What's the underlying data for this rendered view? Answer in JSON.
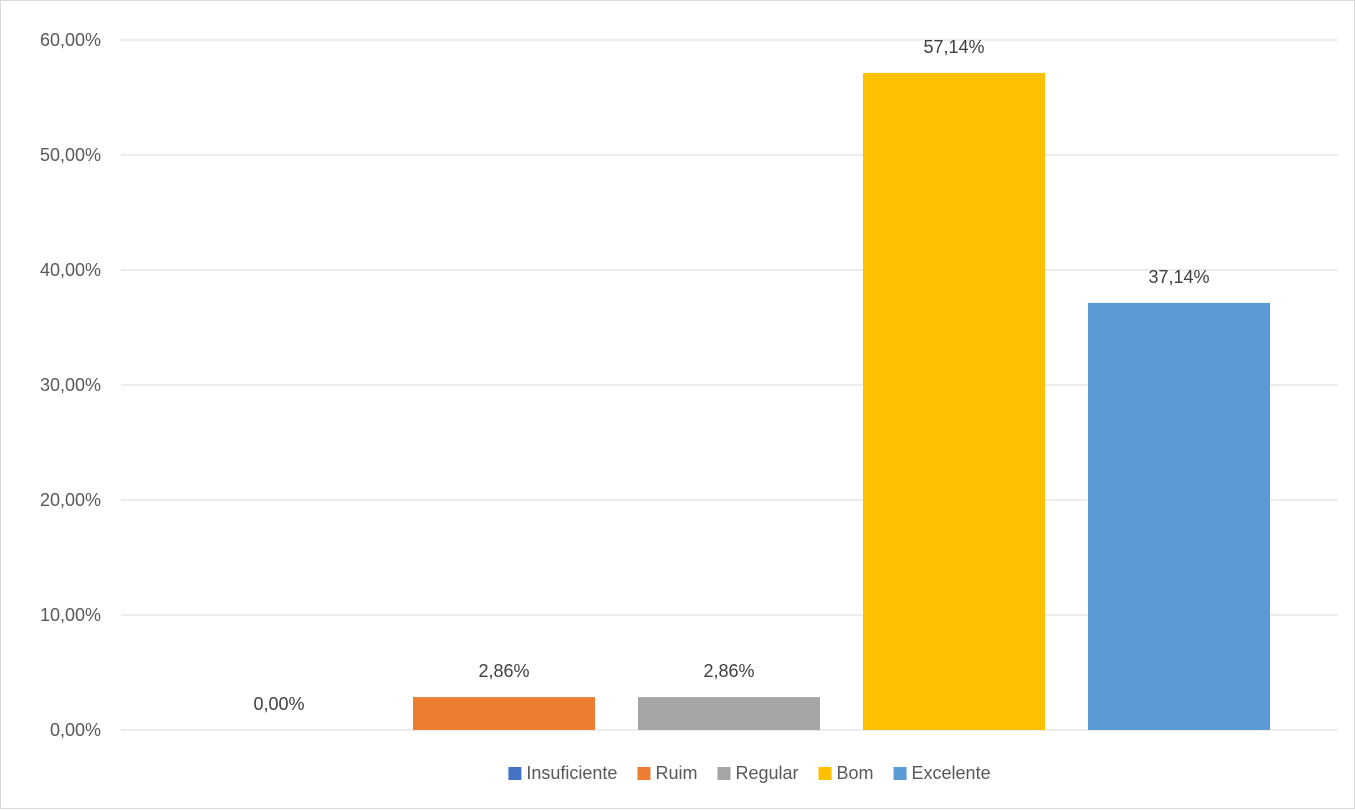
{
  "chart_data": {
    "type": "bar",
    "title": "",
    "xlabel": "",
    "ylabel": "",
    "categories": [
      "Insuficiente",
      "Ruim",
      "Regular",
      "Bom",
      "Excelente"
    ],
    "values": [
      0.0,
      2.86,
      2.86,
      57.14,
      37.14
    ],
    "data_labels": [
      "0,00%",
      "2,86%",
      "2,86%",
      "57,14%",
      "37,14%"
    ],
    "colors": [
      "#4472c4",
      "#ed7d31",
      "#a5a5a5",
      "#ffc000",
      "#5b9bd5"
    ],
    "ylim": [
      0,
      60
    ],
    "yticks": [
      0,
      10,
      20,
      30,
      40,
      50,
      60
    ],
    "ytick_labels": [
      "0,00%",
      "10,00%",
      "20,00%",
      "30,00%",
      "40,00%",
      "50,00%",
      "60,00%"
    ],
    "grid": true,
    "legend": {
      "position": "bottom",
      "entries": [
        "Insuficiente",
        "Ruim",
        "Regular",
        "Bom",
        "Excelente"
      ]
    }
  }
}
